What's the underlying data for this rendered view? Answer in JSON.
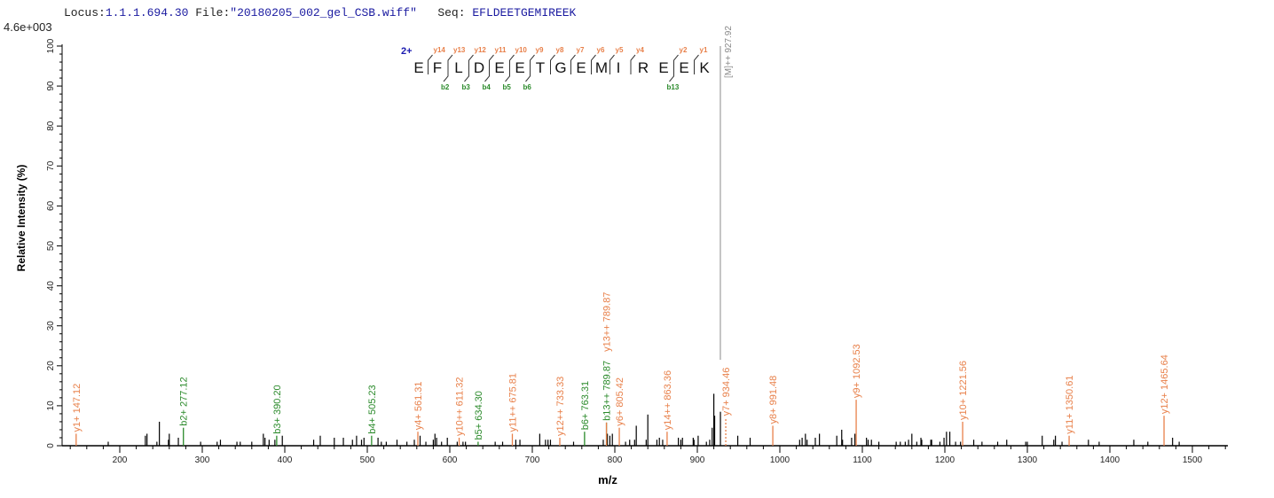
{
  "header": {
    "locus_label": "Locus:",
    "locus": "1.1.1.694.30",
    "file_label": "File:",
    "file": "\"20180205_002_gel_CSB.wiff\"",
    "seq_label": "Seq:",
    "seq": "EFLDEETGEMIREEK"
  },
  "chart_data": {
    "type": "bar",
    "title": "",
    "max_intensity_label": "4.6e+003",
    "xlabel": "m/z",
    "ylabel": "Relative   Intensity (%)",
    "xlim": [
      130,
      1543
    ],
    "ylim": [
      0,
      100
    ],
    "xticks": [
      200,
      300,
      400,
      500,
      600,
      700,
      800,
      900,
      1000,
      1100,
      1200,
      1300,
      1400,
      1500
    ],
    "yticks": [
      0,
      10,
      20,
      30,
      40,
      50,
      60,
      70,
      80,
      90,
      100
    ],
    "colors": {
      "y_ion": "#e8804a",
      "b_ion": "#2a8a2a",
      "precursor": "#888888",
      "unmatched": "#000000",
      "charge": "#1a1ab0"
    },
    "annotated_peaks": [
      {
        "label": "y1+ 147.12",
        "mz": 147.12,
        "intensity": 3,
        "type": "y"
      },
      {
        "label": "b2+ 277.12",
        "mz": 277.12,
        "intensity": 4.5,
        "type": "b"
      },
      {
        "label": "b3+ 390.20",
        "mz": 390.2,
        "intensity": 2.5,
        "type": "b"
      },
      {
        "label": "b4+ 505.23",
        "mz": 505.23,
        "intensity": 2.5,
        "type": "b"
      },
      {
        "label": "y4+ 561.31",
        "mz": 561.31,
        "intensity": 3.5,
        "type": "y"
      },
      {
        "label": "y10++ 611.32",
        "mz": 611.32,
        "intensity": 2,
        "type": "y"
      },
      {
        "label": "b5+ 634.30",
        "mz": 634.3,
        "intensity": 1,
        "type": "b"
      },
      {
        "label": "y11++ 675.81",
        "mz": 675.81,
        "intensity": 3,
        "type": "y"
      },
      {
        "label": "y12++ 733.33",
        "mz": 733.33,
        "intensity": 2,
        "type": "y"
      },
      {
        "label": "b6+ 763.31",
        "mz": 763.31,
        "intensity": 3.5,
        "type": "b"
      },
      {
        "label": "b13++ 789.87",
        "mz": 789.87,
        "intensity": 5.8,
        "type": "b"
      },
      {
        "label": "y13++ 789.87",
        "mz": 789.87,
        "intensity": 5.8,
        "type": "y",
        "stack": true
      },
      {
        "label": "y6+ 805.42",
        "mz": 805.42,
        "intensity": 4.5,
        "type": "y"
      },
      {
        "label": "y14++ 863.36",
        "mz": 863.36,
        "intensity": 3.5,
        "type": "y"
      },
      {
        "label": "y7+ 934.46",
        "mz": 934.46,
        "intensity": 7,
        "type": "y"
      },
      {
        "label": "y8+ 991.48",
        "mz": 991.48,
        "intensity": 5,
        "type": "y"
      },
      {
        "label": "y9+ 1092.53",
        "mz": 1092.53,
        "intensity": 11.5,
        "type": "y"
      },
      {
        "label": "y10+ 1221.56",
        "mz": 1221.56,
        "intensity": 6,
        "type": "y"
      },
      {
        "label": "y11+ 1350.61",
        "mz": 1350.61,
        "intensity": 2.5,
        "type": "y"
      },
      {
        "label": "y12+ 1465.64",
        "mz": 1465.64,
        "intensity": 7.5,
        "type": "y"
      }
    ],
    "precursor": {
      "label": "[M]++ 927.92",
      "mz": 927.92,
      "intensity": 100
    },
    "unmatched_peaks": [
      [
        186,
        1
      ],
      [
        231,
        2.5
      ],
      [
        233,
        3
      ],
      [
        245,
        1
      ],
      [
        248,
        6
      ],
      [
        259,
        1.5
      ],
      [
        260,
        3
      ],
      [
        271,
        2
      ],
      [
        298,
        1
      ],
      [
        318,
        1
      ],
      [
        322,
        1.5
      ],
      [
        342,
        1
      ],
      [
        346,
        1
      ],
      [
        360,
        1
      ],
      [
        374,
        3
      ],
      [
        376,
        2
      ],
      [
        381,
        1.5
      ],
      [
        388,
        1.5
      ],
      [
        397,
        2.5
      ],
      [
        435,
        1.5
      ],
      [
        443,
        2.5
      ],
      [
        460,
        2
      ],
      [
        471,
        2
      ],
      [
        482,
        1.5
      ],
      [
        487,
        2.5
      ],
      [
        493,
        1.5
      ],
      [
        496,
        2
      ],
      [
        513,
        2
      ],
      [
        517,
        1
      ],
      [
        523,
        1
      ],
      [
        536,
        1.5
      ],
      [
        548,
        1
      ],
      [
        557,
        1.5
      ],
      [
        564,
        2.5
      ],
      [
        571,
        1
      ],
      [
        580,
        1.5
      ],
      [
        582,
        3
      ],
      [
        584,
        2
      ],
      [
        590,
        1
      ],
      [
        597,
        2
      ],
      [
        609,
        1
      ],
      [
        616,
        1
      ],
      [
        619,
        1
      ],
      [
        655,
        1
      ],
      [
        664,
        1
      ],
      [
        680,
        1.5
      ],
      [
        685,
        1.5
      ],
      [
        709,
        3
      ],
      [
        716,
        1.5
      ],
      [
        719,
        1.5
      ],
      [
        722,
        1.5
      ],
      [
        750,
        1
      ],
      [
        786,
        1.5
      ],
      [
        791,
        3
      ],
      [
        794,
        2.5
      ],
      [
        797,
        3
      ],
      [
        813,
        1
      ],
      [
        818,
        1.5
      ],
      [
        824,
        1.5
      ],
      [
        826,
        5
      ],
      [
        838,
        1.5
      ],
      [
        840,
        7.8
      ],
      [
        851,
        1.5
      ],
      [
        854,
        2
      ],
      [
        858,
        1.5
      ],
      [
        877,
        2
      ],
      [
        880,
        1.5
      ],
      [
        882,
        2
      ],
      [
        895,
        2
      ],
      [
        896,
        1.5
      ],
      [
        901,
        2.5
      ],
      [
        911,
        1
      ],
      [
        915,
        1.5
      ],
      [
        918,
        4.5
      ],
      [
        920,
        13
      ],
      [
        921,
        7.5
      ],
      [
        928,
        8.5
      ],
      [
        949,
        2.5
      ],
      [
        964,
        2
      ],
      [
        1024,
        1.5
      ],
      [
        1027,
        2
      ],
      [
        1031,
        3
      ],
      [
        1033,
        1.5
      ],
      [
        1043,
        2
      ],
      [
        1048,
        3
      ],
      [
        1069,
        2.5
      ],
      [
        1075,
        4
      ],
      [
        1076,
        1.5
      ],
      [
        1087,
        2
      ],
      [
        1091,
        3
      ],
      [
        1105,
        2
      ],
      [
        1107,
        1.5
      ],
      [
        1111,
        1.5
      ],
      [
        1120,
        1
      ],
      [
        1141,
        1
      ],
      [
        1146,
        1
      ],
      [
        1152,
        1
      ],
      [
        1156,
        1.5
      ],
      [
        1160,
        3
      ],
      [
        1166,
        1
      ],
      [
        1171,
        2
      ],
      [
        1172,
        1.5
      ],
      [
        1183,
        1.5
      ],
      [
        1184,
        1.5
      ],
      [
        1194,
        1
      ],
      [
        1199,
        2
      ],
      [
        1202,
        3.5
      ],
      [
        1206,
        3.5
      ],
      [
        1213,
        1
      ],
      [
        1219,
        1
      ],
      [
        1235,
        1.5
      ],
      [
        1245,
        1
      ],
      [
        1264,
        1
      ],
      [
        1275,
        1.5
      ],
      [
        1298,
        1
      ],
      [
        1300,
        1
      ],
      [
        1318,
        2.5
      ],
      [
        1332,
        1.5
      ],
      [
        1334,
        2.5
      ],
      [
        1342,
        1
      ],
      [
        1374,
        1.5
      ],
      [
        1387,
        1
      ],
      [
        1429,
        1.5
      ],
      [
        1446,
        1
      ],
      [
        1476,
        2
      ],
      [
        1484,
        1
      ]
    ],
    "peptide": {
      "charge": "2+",
      "residues": [
        "E",
        "F",
        "L",
        "D",
        "E",
        "E",
        "T",
        "G",
        "E",
        "M",
        "I",
        "R",
        "E",
        "E",
        "K"
      ],
      "y_ions": [
        "y14",
        "y13",
        "y12",
        "y11",
        "y10",
        "y9",
        "y8",
        "y7",
        "y6",
        "y5",
        "y4",
        "",
        "y2",
        "y1"
      ],
      "b_ions": [
        "",
        "b2",
        "b3",
        "b4",
        "b5",
        "b6",
        "",
        "",
        "",
        "",
        "",
        "",
        "b13",
        ""
      ]
    }
  }
}
